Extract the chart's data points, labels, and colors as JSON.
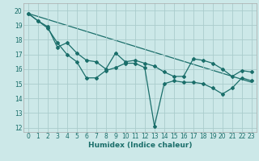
{
  "title": "",
  "xlabel": "Humidex (Indice chaleur)",
  "background_color": "#cce8e8",
  "grid_color": "#aacccc",
  "line_color": "#1a6e6a",
  "xlim": [
    -0.5,
    23.5
  ],
  "ylim": [
    11.7,
    20.5
  ],
  "yticks": [
    12,
    13,
    14,
    15,
    16,
    17,
    18,
    19,
    20
  ],
  "xticks": [
    0,
    1,
    2,
    3,
    4,
    5,
    6,
    7,
    8,
    9,
    10,
    11,
    12,
    13,
    14,
    15,
    16,
    17,
    18,
    19,
    20,
    21,
    22,
    23
  ],
  "series1_x": [
    0,
    1,
    2,
    3,
    4,
    5,
    6,
    7,
    8,
    9,
    10,
    11,
    12,
    13,
    14,
    15,
    16,
    17,
    18,
    19,
    20,
    21,
    22,
    23
  ],
  "series1_y": [
    19.8,
    19.3,
    18.8,
    17.8,
    17.0,
    16.5,
    15.4,
    15.4,
    15.9,
    16.1,
    16.4,
    16.4,
    16.1,
    12.1,
    15.0,
    15.2,
    15.1,
    15.1,
    15.0,
    14.7,
    14.3,
    14.7,
    15.4,
    15.2
  ],
  "series2_x": [
    0,
    1,
    2,
    3,
    4,
    5,
    6,
    7,
    8,
    9,
    10,
    11,
    12,
    13,
    14,
    15,
    16,
    17,
    18,
    19,
    20,
    21,
    22,
    23
  ],
  "series2_y": [
    19.8,
    19.3,
    18.9,
    17.5,
    17.8,
    17.1,
    16.6,
    16.5,
    16.0,
    17.1,
    16.5,
    16.6,
    16.4,
    16.2,
    15.8,
    15.5,
    15.5,
    16.7,
    16.6,
    16.4,
    16.0,
    15.5,
    15.9,
    15.8
  ],
  "series3_x": [
    0,
    23
  ],
  "series3_y": [
    19.8,
    15.1
  ]
}
